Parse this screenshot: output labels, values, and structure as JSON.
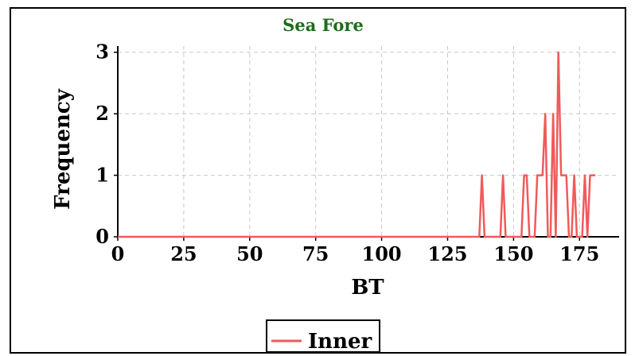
{
  "chart_data": {
    "type": "line",
    "title": "Sea Fore",
    "xlabel": "BT",
    "ylabel": "Frequency",
    "xlim": [
      0,
      190
    ],
    "ylim": [
      0,
      3.1
    ],
    "x_ticks": [
      0,
      25,
      50,
      75,
      100,
      125,
      150,
      175
    ],
    "y_ticks": [
      0,
      1,
      2,
      3
    ],
    "grid": true,
    "legend_position": "bottom-center",
    "series": [
      {
        "name": "Inner",
        "color": "#f05a5a",
        "points": [
          [
            0,
            0
          ],
          [
            137,
            0
          ],
          [
            138,
            1
          ],
          [
            139,
            0
          ],
          [
            145,
            0
          ],
          [
            146,
            1
          ],
          [
            147,
            0
          ],
          [
            153,
            0
          ],
          [
            154,
            1
          ],
          [
            155,
            1
          ],
          [
            156,
            0
          ],
          [
            158,
            0
          ],
          [
            159,
            1
          ],
          [
            160,
            1
          ],
          [
            161,
            1
          ],
          [
            162,
            2
          ],
          [
            163,
            0
          ],
          [
            164,
            0
          ],
          [
            165,
            2
          ],
          [
            166,
            0
          ],
          [
            167,
            3
          ],
          [
            168,
            1
          ],
          [
            169,
            1
          ],
          [
            170,
            1
          ],
          [
            171,
            0
          ],
          [
            172,
            0
          ],
          [
            173,
            1
          ],
          [
            174,
            0
          ],
          [
            175,
            0
          ],
          [
            176,
            0
          ],
          [
            177,
            1
          ],
          [
            178,
            0
          ],
          [
            179,
            1
          ],
          [
            180,
            1
          ],
          [
            181,
            1
          ]
        ]
      }
    ]
  }
}
